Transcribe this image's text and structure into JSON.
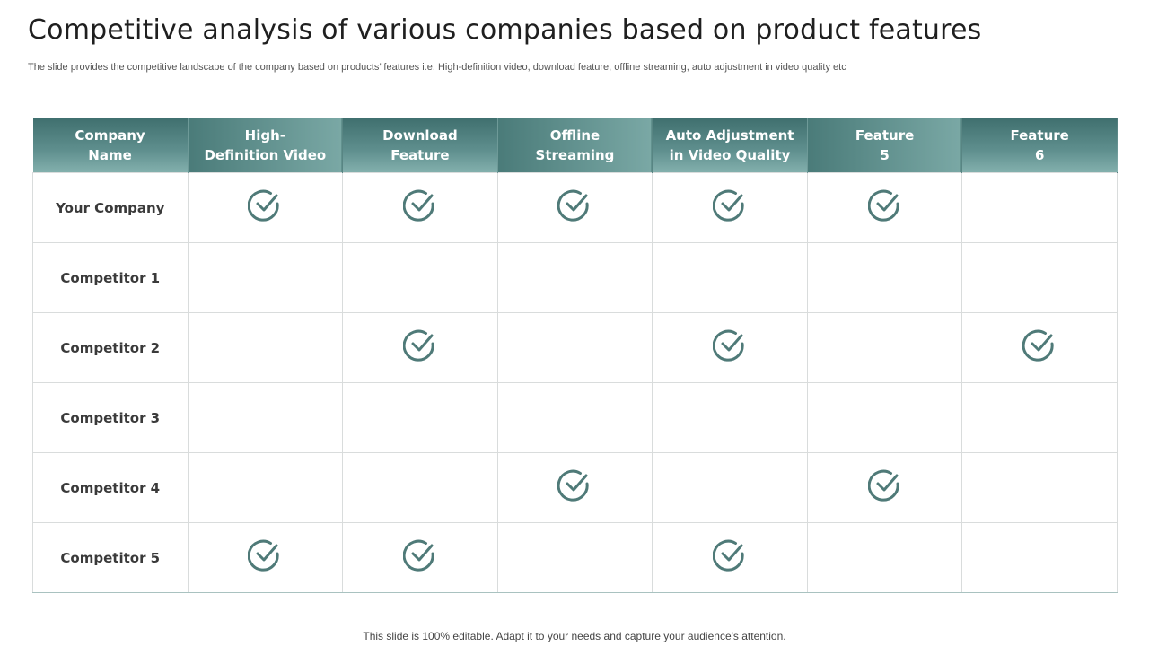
{
  "title": "Competitive analysis of various companies based on product features",
  "subtitle": "The slide provides the competitive landscape of the company based on products’ features i.e. High-definition video, download feature, offline streaming, auto adjustment in video quality etc",
  "table": {
    "headers": [
      [
        "Company",
        "Name"
      ],
      [
        "High-",
        "Definition Video"
      ],
      [
        "Download",
        "Feature"
      ],
      [
        "Offline",
        "Streaming"
      ],
      [
        "Auto Adjustment",
        "in Video Quality"
      ],
      [
        "Feature",
        "5"
      ],
      [
        "Feature",
        "6"
      ]
    ],
    "rows": [
      {
        "name": "Your Company",
        "checks": [
          true,
          true,
          true,
          true,
          true,
          false
        ]
      },
      {
        "name": "Competitor 1",
        "checks": [
          false,
          false,
          false,
          false,
          false,
          false
        ]
      },
      {
        "name": "Competitor 2",
        "checks": [
          false,
          true,
          false,
          true,
          false,
          true
        ]
      },
      {
        "name": "Competitor 3",
        "checks": [
          false,
          false,
          false,
          false,
          false,
          false
        ]
      },
      {
        "name": "Competitor 4",
        "checks": [
          false,
          false,
          true,
          false,
          true,
          false
        ]
      },
      {
        "name": "Competitor 5",
        "checks": [
          true,
          true,
          false,
          true,
          false,
          false
        ]
      }
    ]
  },
  "footer": "This slide is 100% editable. Adapt it to your needs and capture your audience's attention.",
  "colors": {
    "header_dark": "#3f6f6e",
    "header_light": "#83b0ad",
    "check": "#4f7a78",
    "grid": "#d9dcdc"
  },
  "icons": {
    "check": "check-circle-icon"
  }
}
